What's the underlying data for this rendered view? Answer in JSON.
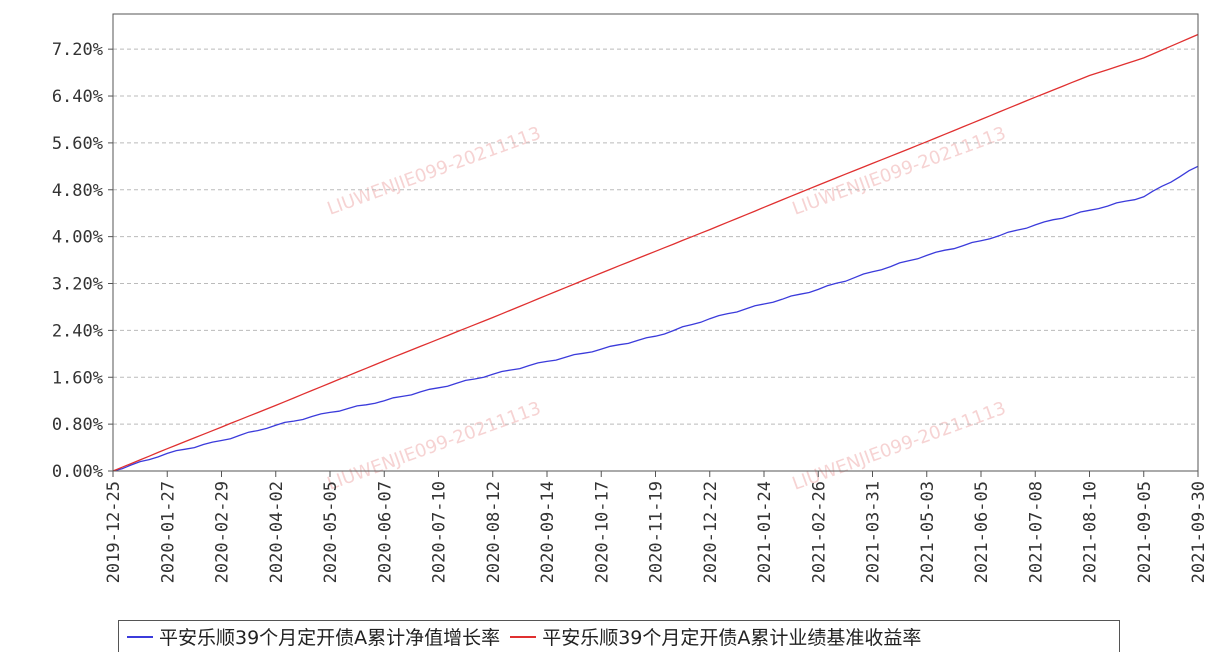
{
  "chart_data": {
    "type": "line",
    "y_tick_labels": [
      "0.00%",
      "0.80%",
      "1.60%",
      "2.40%",
      "3.20%",
      "4.00%",
      "4.80%",
      "5.60%",
      "6.40%",
      "7.20%"
    ],
    "ylim": [
      0.0,
      7.8
    ],
    "x_tick_labels": [
      "2019-12-25",
      "2020-01-27",
      "2020-02-29",
      "2020-04-02",
      "2020-05-05",
      "2020-06-07",
      "2020-07-10",
      "2020-08-12",
      "2020-09-14",
      "2020-10-17",
      "2020-11-19",
      "2020-12-22",
      "2021-01-24",
      "2021-02-26",
      "2021-03-31",
      "2021-05-03",
      "2021-06-05",
      "2021-07-08",
      "2021-08-10",
      "2021-09-05",
      "2021-09-30"
    ],
    "x": [
      "2019-12-25",
      "2020-01-27",
      "2020-02-29",
      "2020-04-02",
      "2020-05-05",
      "2020-06-07",
      "2020-07-10",
      "2020-08-12",
      "2020-09-14",
      "2020-10-17",
      "2020-11-19",
      "2020-12-22",
      "2021-01-24",
      "2021-02-26",
      "2021-03-31",
      "2021-05-03",
      "2021-06-05",
      "2021-07-08",
      "2021-08-10",
      "2021-09-05",
      "2021-09-30"
    ],
    "series": [
      {
        "name": "平安乐顺39个月定开债A累计净值增长率",
        "color": "#3b3bdb",
        "values": [
          0.0,
          0.3,
          0.52,
          0.78,
          1.0,
          1.2,
          1.42,
          1.65,
          1.87,
          2.08,
          2.3,
          2.6,
          2.85,
          3.1,
          3.4,
          3.68,
          3.93,
          4.2,
          4.45,
          4.68,
          5.2
        ]
      },
      {
        "name": "平安乐顺39个月定开债A累计业绩基准收益率",
        "color": "#e03030",
        "values": [
          0.0,
          0.38,
          0.75,
          1.12,
          1.5,
          1.88,
          2.25,
          2.62,
          3.0,
          3.38,
          3.75,
          4.12,
          4.5,
          4.88,
          5.25,
          5.62,
          6.0,
          6.38,
          6.75,
          7.05,
          7.45
        ]
      }
    ],
    "grid": true,
    "legend_position": "bottom"
  },
  "watermark": [
    "LIUWENJIE099-20211113",
    "LIUWENJIE099-20211113",
    "LIUWENJIE099-20211113",
    "LIUWENJIE099-20211113"
  ]
}
